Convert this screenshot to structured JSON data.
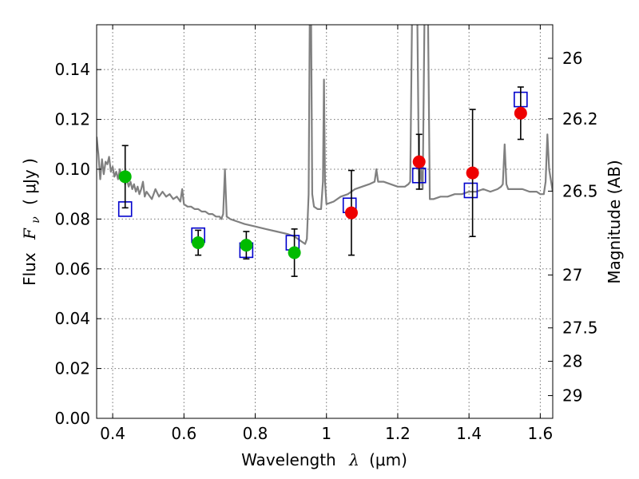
{
  "chart_data": {
    "type": "scatter",
    "xlabel": "Wavelength",
    "xlabel_symbol": "λ",
    "xlabel_unit": "(μm)",
    "ylabel": "Flux",
    "ylabel_symbol": "F",
    "ylabel_subscript": "ν",
    "ylabel_unit": "( μJy )",
    "y2label": "Magnitude (AB)",
    "xlim": [
      0.355,
      1.635
    ],
    "ylim": [
      0.0,
      0.158
    ],
    "grid": true,
    "x_ticks": [
      0.4,
      0.6,
      0.8,
      1.0,
      1.2,
      1.4,
      1.6
    ],
    "x_tick_labels": [
      "0.4",
      "0.6",
      "0.8",
      "1",
      "1.2",
      "1.4",
      "1.6"
    ],
    "y_ticks": [
      0.0,
      0.02,
      0.04,
      0.06,
      0.08,
      0.1,
      0.12,
      0.14
    ],
    "y_tick_labels": [
      "0.00",
      "0.02",
      "0.04",
      "0.06",
      "0.08",
      "0.10",
      "0.12",
      "0.14"
    ],
    "y2_ticks": [
      26,
      26.2,
      26.5,
      27,
      27.5,
      28,
      29
    ],
    "y2_tick_labels": [
      "26",
      "26.2",
      "26.5",
      "27",
      "27.5",
      "28",
      "29"
    ],
    "colors": {
      "model": "#808080",
      "model_points": "#0000cc",
      "photometry_green": "#00bb00",
      "photometry_red": "#ee0000",
      "errorbars": "#000000"
    },
    "photometry": [
      {
        "x": 0.435,
        "y": 0.097,
        "yerr": 0.0125,
        "color": "green"
      },
      {
        "x": 0.64,
        "y": 0.0705,
        "yerr": 0.005,
        "color": "green"
      },
      {
        "x": 0.775,
        "y": 0.0695,
        "yerr": 0.0055,
        "color": "green"
      },
      {
        "x": 0.91,
        "y": 0.0665,
        "yerr": 0.0095,
        "color": "green"
      },
      {
        "x": 1.07,
        "y": 0.0825,
        "yerr": 0.017,
        "color": "red"
      },
      {
        "x": 1.26,
        "y": 0.103,
        "yerr": 0.011,
        "color": "red"
      },
      {
        "x": 1.41,
        "y": 0.0985,
        "yerr": 0.0255,
        "color": "red"
      },
      {
        "x": 1.545,
        "y": 0.1225,
        "yerr": 0.0105,
        "color": "red"
      }
    ],
    "model_points": [
      {
        "x": 0.435,
        "y": 0.084
      },
      {
        "x": 0.64,
        "y": 0.0735
      },
      {
        "x": 0.775,
        "y": 0.0675
      },
      {
        "x": 0.905,
        "y": 0.0705
      },
      {
        "x": 1.065,
        "y": 0.0855
      },
      {
        "x": 1.26,
        "y": 0.0975
      },
      {
        "x": 1.405,
        "y": 0.0915
      },
      {
        "x": 1.545,
        "y": 0.128
      }
    ],
    "model_spectrum": [
      [
        0.355,
        0.113
      ],
      [
        0.36,
        0.106
      ],
      [
        0.365,
        0.096
      ],
      [
        0.37,
        0.104
      ],
      [
        0.375,
        0.098
      ],
      [
        0.38,
        0.103
      ],
      [
        0.385,
        0.102
      ],
      [
        0.39,
        0.105
      ],
      [
        0.395,
        0.099
      ],
      [
        0.4,
        0.101
      ],
      [
        0.405,
        0.097
      ],
      [
        0.41,
        0.099
      ],
      [
        0.415,
        0.096
      ],
      [
        0.42,
        0.1
      ],
      [
        0.425,
        0.097
      ],
      [
        0.43,
        0.098
      ],
      [
        0.435,
        0.094
      ],
      [
        0.44,
        0.096
      ],
      [
        0.445,
        0.093
      ],
      [
        0.45,
        0.095
      ],
      [
        0.455,
        0.092
      ],
      [
        0.46,
        0.094
      ],
      [
        0.465,
        0.091
      ],
      [
        0.47,
        0.093
      ],
      [
        0.475,
        0.09
      ],
      [
        0.48,
        0.092
      ],
      [
        0.485,
        0.095
      ],
      [
        0.49,
        0.089
      ],
      [
        0.495,
        0.091
      ],
      [
        0.5,
        0.09
      ],
      [
        0.51,
        0.088
      ],
      [
        0.52,
        0.092
      ],
      [
        0.53,
        0.089
      ],
      [
        0.54,
        0.091
      ],
      [
        0.55,
        0.089
      ],
      [
        0.56,
        0.09
      ],
      [
        0.57,
        0.088
      ],
      [
        0.58,
        0.089
      ],
      [
        0.59,
        0.087
      ],
      [
        0.595,
        0.092
      ],
      [
        0.6,
        0.086
      ],
      [
        0.61,
        0.085
      ],
      [
        0.62,
        0.085
      ],
      [
        0.63,
        0.084
      ],
      [
        0.64,
        0.084
      ],
      [
        0.65,
        0.083
      ],
      [
        0.66,
        0.083
      ],
      [
        0.67,
        0.082
      ],
      [
        0.68,
        0.082
      ],
      [
        0.69,
        0.081
      ],
      [
        0.7,
        0.081
      ],
      [
        0.705,
        0.08
      ],
      [
        0.71,
        0.082
      ],
      [
        0.715,
        0.1
      ],
      [
        0.72,
        0.081
      ],
      [
        0.73,
        0.08
      ],
      [
        0.75,
        0.079
      ],
      [
        0.77,
        0.078
      ],
      [
        0.8,
        0.077
      ],
      [
        0.83,
        0.076
      ],
      [
        0.86,
        0.075
      ],
      [
        0.89,
        0.074
      ],
      [
        0.91,
        0.073
      ],
      [
        0.93,
        0.071
      ],
      [
        0.94,
        0.07
      ],
      [
        0.945,
        0.072
      ],
      [
        0.95,
        0.09
      ],
      [
        0.953,
        0.16
      ],
      [
        0.957,
        0.16
      ],
      [
        0.96,
        0.09
      ],
      [
        0.965,
        0.085
      ],
      [
        0.975,
        0.084
      ],
      [
        0.985,
        0.084
      ],
      [
        0.99,
        0.095
      ],
      [
        0.993,
        0.136
      ],
      [
        0.996,
        0.095
      ],
      [
        1.0,
        0.086
      ],
      [
        1.02,
        0.087
      ],
      [
        1.04,
        0.089
      ],
      [
        1.06,
        0.09
      ],
      [
        1.08,
        0.092
      ],
      [
        1.1,
        0.093
      ],
      [
        1.12,
        0.094
      ],
      [
        1.135,
        0.095
      ],
      [
        1.14,
        0.1
      ],
      [
        1.145,
        0.095
      ],
      [
        1.16,
        0.095
      ],
      [
        1.18,
        0.094
      ],
      [
        1.2,
        0.093
      ],
      [
        1.22,
        0.093
      ],
      [
        1.23,
        0.094
      ],
      [
        1.235,
        0.095
      ],
      [
        1.24,
        0.16
      ],
      [
        1.255,
        0.16
      ],
      [
        1.26,
        0.092
      ],
      [
        1.265,
        0.1
      ],
      [
        1.27,
        0.092
      ],
      [
        1.275,
        0.16
      ],
      [
        1.285,
        0.16
      ],
      [
        1.29,
        0.088
      ],
      [
        1.3,
        0.088
      ],
      [
        1.32,
        0.089
      ],
      [
        1.34,
        0.089
      ],
      [
        1.36,
        0.09
      ],
      [
        1.38,
        0.09
      ],
      [
        1.4,
        0.091
      ],
      [
        1.42,
        0.091
      ],
      [
        1.44,
        0.092
      ],
      [
        1.46,
        0.091
      ],
      [
        1.48,
        0.092
      ],
      [
        1.49,
        0.093
      ],
      [
        1.495,
        0.094
      ],
      [
        1.5,
        0.11
      ],
      [
        1.505,
        0.094
      ],
      [
        1.51,
        0.092
      ],
      [
        1.53,
        0.092
      ],
      [
        1.55,
        0.092
      ],
      [
        1.57,
        0.091
      ],
      [
        1.59,
        0.091
      ],
      [
        1.6,
        0.09
      ],
      [
        1.61,
        0.09
      ],
      [
        1.615,
        0.095
      ],
      [
        1.62,
        0.114
      ],
      [
        1.625,
        0.1
      ],
      [
        1.635,
        0.091
      ]
    ]
  }
}
